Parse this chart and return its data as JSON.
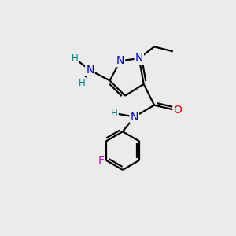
{
  "bg_color": "#ebebeb",
  "atom_colors": {
    "C": "#000000",
    "N": "#0000cc",
    "O": "#ff0000",
    "F": "#cc00cc",
    "H": "#008080"
  },
  "bond_color": "#000000",
  "bond_width": 1.6,
  "font_size_atoms": 10,
  "font_size_h": 8.5
}
